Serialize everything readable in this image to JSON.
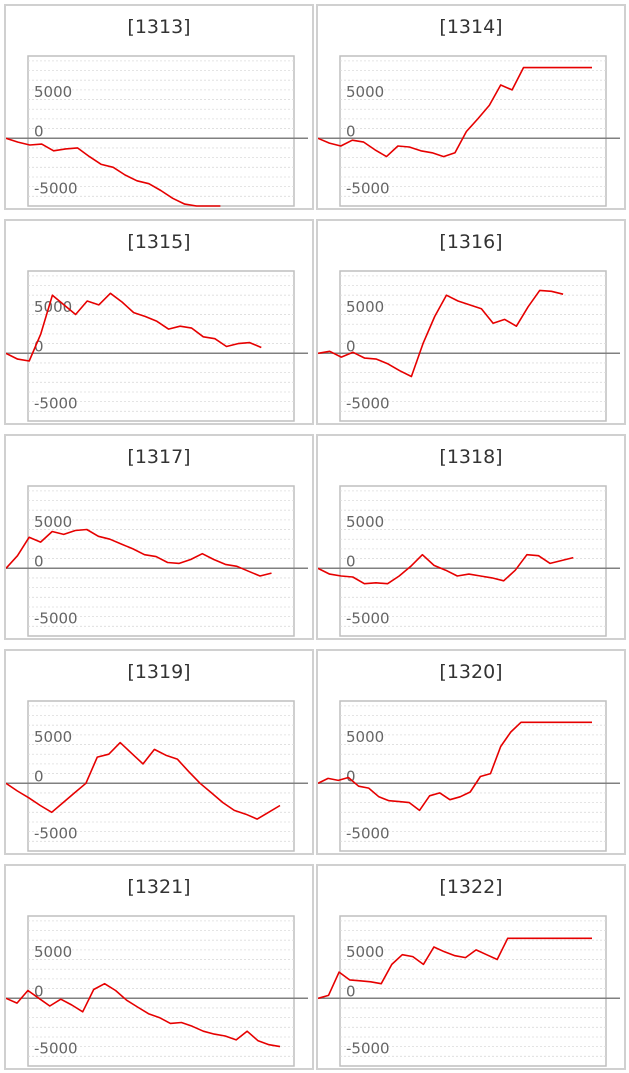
{
  "colors": {
    "line": "#e60000",
    "zero_line": "#808080",
    "frame": "#bfbfbf",
    "grid": "#dcdcdc",
    "tick": "#666666",
    "title": "#333333"
  },
  "chart_data": [
    {
      "type": "line",
      "title": "[1313]",
      "yticks": [
        "5000",
        "0",
        "-5000"
      ],
      "ylim": [
        -7000,
        8500
      ],
      "y": [
        0,
        -400,
        -700,
        -600,
        -1300,
        -1100,
        -1000,
        -1900,
        -2700,
        -3000,
        -3800,
        -4400,
        -4700,
        -5400,
        -6200,
        -6800,
        -7000,
        -7000,
        -7000
      ]
    },
    {
      "type": "line",
      "title": "[1314]",
      "yticks": [
        "5000",
        "0",
        "-5000"
      ],
      "ylim": [
        -7000,
        8500
      ],
      "y": [
        0,
        -500,
        -800,
        -200,
        -400,
        -1200,
        -1900,
        -800,
        -900,
        -1300,
        -1500,
        -1900,
        -1500,
        700,
        2000,
        3400,
        5500,
        5000,
        7300,
        7300,
        7300,
        7300,
        7300,
        7300,
        7300
      ]
    },
    {
      "type": "line",
      "title": "[1315]",
      "yticks": [
        "5000",
        "0",
        "-5000"
      ],
      "ylim": [
        -7000,
        8500
      ],
      "y": [
        0,
        -600,
        -800,
        2000,
        6000,
        5000,
        4000,
        5400,
        5000,
        6200,
        5300,
        4200,
        3800,
        3300,
        2500,
        2800,
        2600,
        1700,
        1500,
        700,
        1000,
        1100,
        600
      ]
    },
    {
      "type": "line",
      "title": "[1316]",
      "yticks": [
        "5000",
        "0",
        "-5000"
      ],
      "ylim": [
        -7000,
        8500
      ],
      "y": [
        0,
        200,
        -400,
        100,
        -500,
        -600,
        -1100,
        -1800,
        -2400,
        1000,
        3800,
        6000,
        5400,
        5000,
        4600,
        3100,
        3500,
        2800,
        4800,
        6500,
        6400,
        6100
      ]
    },
    {
      "type": "line",
      "title": "[1317]",
      "yticks": [
        "5000",
        "0",
        "-5000"
      ],
      "ylim": [
        -7000,
        8500
      ],
      "y": [
        0,
        1300,
        3200,
        2700,
        3800,
        3500,
        3900,
        4000,
        3300,
        3000,
        2500,
        2000,
        1400,
        1200,
        600,
        500,
        900,
        1500,
        900,
        400,
        200,
        -300,
        -800,
        -500
      ]
    },
    {
      "type": "line",
      "title": "[1318]",
      "yticks": [
        "5000",
        "0",
        "-5000"
      ],
      "ylim": [
        -7000,
        8500
      ],
      "y": [
        0,
        -600,
        -800,
        -900,
        -1600,
        -1500,
        -1600,
        -800,
        200,
        1400,
        300,
        -200,
        -800,
        -600,
        -800,
        -1000,
        -1300,
        -200,
        1400,
        1300,
        500,
        800,
        1100
      ]
    },
    {
      "type": "line",
      "title": "[1319]",
      "yticks": [
        "5000",
        "0",
        "-5000"
      ],
      "ylim": [
        -7000,
        8500
      ],
      "y": [
        0,
        -800,
        -1500,
        -2300,
        -3000,
        -2000,
        -1000,
        0,
        2700,
        3000,
        4200,
        3100,
        2000,
        3500,
        2900,
        2500,
        1200,
        0,
        -1000,
        -2000,
        -2800,
        -3200,
        -3700,
        -3000,
        -2300
      ]
    },
    {
      "type": "line",
      "title": "[1320]",
      "yticks": [
        "5000",
        "0",
        "-5000"
      ],
      "ylim": [
        -7000,
        8500
      ],
      "y": [
        0,
        500,
        300,
        600,
        -300,
        -500,
        -1400,
        -1800,
        -1900,
        -2000,
        -2800,
        -1300,
        -1000,
        -1700,
        -1400,
        -900,
        700,
        1000,
        3800,
        5300,
        6300,
        6300,
        6300,
        6300,
        6300,
        6300,
        6300,
        6300
      ]
    },
    {
      "type": "line",
      "title": "[1321]",
      "yticks": [
        "5000",
        "0",
        "-5000"
      ],
      "ylim": [
        -7000,
        8500
      ],
      "y": [
        0,
        -500,
        800,
        0,
        -800,
        -100,
        -700,
        -1400,
        900,
        1500,
        800,
        -200,
        -900,
        -1600,
        -2000,
        -2600,
        -2500,
        -2900,
        -3400,
        -3700,
        -3900,
        -4300,
        -3400,
        -4400,
        -4800,
        -5000
      ]
    },
    {
      "type": "line",
      "title": "[1322]",
      "yticks": [
        "5000",
        "0",
        "-5000"
      ],
      "ylim": [
        -7000,
        8500
      ],
      "y": [
        0,
        300,
        2700,
        1900,
        1800,
        1700,
        1500,
        3500,
        4500,
        4300,
        3500,
        5300,
        4800,
        4400,
        4200,
        5000,
        4500,
        4000,
        6200,
        6200,
        6200,
        6200,
        6200,
        6200,
        6200,
        6200,
        6200
      ]
    }
  ]
}
